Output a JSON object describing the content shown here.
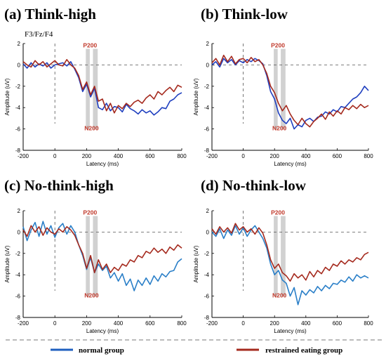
{
  "chart_data": [
    {
      "panel": "(a)",
      "title": "Think-high",
      "electrodes": "F3/Fz/F4",
      "type": "line",
      "xlabel": "Latency (ms)",
      "ylabel": "Amplitude (uV)",
      "xlim": [
        -200,
        800
      ],
      "ylim": [
        -8,
        2
      ],
      "xticks": [
        "-200",
        "0",
        "200",
        "400",
        "600",
        "800"
      ],
      "yticks": [
        "2",
        "0",
        "-2",
        "-4",
        "-6",
        "-8"
      ],
      "components": [
        {
          "label": "P200",
          "x": [
            195,
            220
          ]
        },
        {
          "label": "N200",
          "x": [
            240,
            270
          ]
        }
      ],
      "series": [
        {
          "name": "normal group",
          "color": "#1f3fbf",
          "x": [
            -200,
            -175,
            -150,
            -125,
            -100,
            -75,
            -50,
            -25,
            0,
            25,
            50,
            75,
            100,
            125,
            150,
            175,
            200,
            225,
            250,
            275,
            300,
            325,
            350,
            375,
            400,
            425,
            450,
            475,
            500,
            525,
            550,
            575,
            600,
            625,
            650,
            675,
            700,
            725,
            750,
            775,
            800
          ],
          "values": [
            0.1,
            -0.3,
            0.2,
            -0.2,
            0.1,
            -0.1,
            0.2,
            -0.3,
            0.0,
            0.1,
            0.2,
            -0.1,
            0.3,
            -0.4,
            -1.2,
            -2.5,
            -1.8,
            -3.0,
            -2.2,
            -4.0,
            -4.2,
            -3.6,
            -4.3,
            -3.9,
            -4.0,
            -4.4,
            -3.7,
            -4.1,
            -4.3,
            -4.6,
            -4.2,
            -4.5,
            -4.3,
            -4.7,
            -4.4,
            -4.0,
            -4.1,
            -3.4,
            -3.2,
            -2.8,
            -2.6
          ]
        },
        {
          "name": "restrained eating group",
          "color": "#a52a1e",
          "x": [
            -200,
            -175,
            -150,
            -125,
            -100,
            -75,
            -50,
            -25,
            0,
            25,
            50,
            75,
            100,
            125,
            150,
            175,
            200,
            225,
            250,
            275,
            300,
            325,
            350,
            375,
            400,
            425,
            450,
            475,
            500,
            525,
            550,
            575,
            600,
            625,
            650,
            675,
            700,
            725,
            750,
            775,
            800
          ],
          "values": [
            0.3,
            0.0,
            -0.2,
            0.4,
            0.0,
            0.3,
            -0.2,
            0.1,
            0.4,
            0.0,
            -0.1,
            0.5,
            0.0,
            -0.3,
            -1.0,
            -2.3,
            -1.6,
            -2.8,
            -2.0,
            -3.4,
            -3.2,
            -4.3,
            -3.6,
            -4.5,
            -3.8,
            -4.1,
            -3.6,
            -3.9,
            -3.5,
            -3.3,
            -3.6,
            -3.1,
            -2.8,
            -3.2,
            -2.5,
            -2.8,
            -2.4,
            -2.1,
            -2.5,
            -1.9,
            -2.1
          ]
        }
      ]
    },
    {
      "panel": "(b)",
      "title": "Think-low",
      "type": "line",
      "xlabel": "Latency (ms)",
      "ylabel": "Amplitude (uV)",
      "xlim": [
        -200,
        800
      ],
      "ylim": [
        -8,
        2
      ],
      "xticks": [
        "-200",
        "0",
        "200",
        "400",
        "600",
        "800"
      ],
      "yticks": [
        "2",
        "0",
        "-2",
        "-4",
        "-6",
        "-8"
      ],
      "components": [
        {
          "label": "P200",
          "x": [
            195,
            220
          ]
        },
        {
          "label": "N200",
          "x": [
            240,
            270
          ]
        }
      ],
      "series": [
        {
          "name": "normal group",
          "color": "#1f3fbf",
          "x": [
            -200,
            -175,
            -150,
            -125,
            -100,
            -75,
            -50,
            -25,
            0,
            25,
            50,
            75,
            100,
            125,
            150,
            175,
            200,
            225,
            250,
            275,
            300,
            325,
            350,
            375,
            400,
            425,
            450,
            475,
            500,
            525,
            550,
            575,
            600,
            625,
            650,
            675,
            700,
            725,
            750,
            775,
            800
          ],
          "values": [
            0.0,
            0.3,
            -0.2,
            0.6,
            0.2,
            0.5,
            0.0,
            0.4,
            0.2,
            0.5,
            0.3,
            0.6,
            0.4,
            0.1,
            -1.0,
            -2.5,
            -3.2,
            -4.5,
            -5.2,
            -5.5,
            -5.0,
            -6.0,
            -5.6,
            -5.8,
            -5.2,
            -5.0,
            -5.3,
            -4.9,
            -4.8,
            -4.4,
            -4.6,
            -4.2,
            -4.4,
            -3.9,
            -4.0,
            -3.6,
            -3.2,
            -3.0,
            -2.6,
            -2.0,
            -2.4
          ]
        },
        {
          "name": "restrained eating group",
          "color": "#a52a1e",
          "x": [
            -200,
            -175,
            -150,
            -125,
            -100,
            -75,
            -50,
            -25,
            0,
            25,
            50,
            75,
            100,
            125,
            150,
            175,
            200,
            225,
            250,
            275,
            300,
            325,
            350,
            375,
            400,
            425,
            450,
            475,
            500,
            525,
            550,
            575,
            600,
            625,
            650,
            675,
            700,
            725,
            750,
            775,
            800
          ],
          "values": [
            0.2,
            0.6,
            0.0,
            0.9,
            0.3,
            0.8,
            0.1,
            0.5,
            0.6,
            0.2,
            0.7,
            0.3,
            0.5,
            0.0,
            -0.8,
            -2.0,
            -2.6,
            -3.6,
            -4.3,
            -3.8,
            -4.6,
            -5.2,
            -5.6,
            -5.0,
            -5.5,
            -5.8,
            -5.3,
            -5.0,
            -4.6,
            -5.1,
            -4.4,
            -4.8,
            -4.3,
            -4.6,
            -4.0,
            -4.2,
            -3.8,
            -4.1,
            -3.7,
            -4.0,
            -3.8
          ]
        }
      ]
    },
    {
      "panel": "(c)",
      "title": "No-think-high",
      "type": "line",
      "xlabel": "Latency (ms)",
      "ylabel": "Amplitude (uV)",
      "xlim": [
        -200,
        800
      ],
      "ylim": [
        -8,
        2
      ],
      "xticks": [
        "-200",
        "0",
        "200",
        "400",
        "600",
        "800"
      ],
      "yticks": [
        "2",
        "0",
        "-2",
        "-4",
        "-6",
        "-8"
      ],
      "components": [
        {
          "label": "P200",
          "x": [
            195,
            220
          ]
        },
        {
          "label": "N200",
          "x": [
            240,
            270
          ]
        }
      ],
      "series": [
        {
          "name": "normal group",
          "color": "#2a7fc8",
          "x": [
            -200,
            -175,
            -150,
            -125,
            -100,
            -75,
            -50,
            -25,
            0,
            25,
            50,
            75,
            100,
            125,
            150,
            175,
            200,
            225,
            250,
            275,
            300,
            325,
            350,
            375,
            400,
            425,
            450,
            475,
            500,
            525,
            550,
            575,
            600,
            625,
            650,
            675,
            700,
            725,
            750,
            775,
            800
          ],
          "values": [
            0.5,
            -0.8,
            0.2,
            0.9,
            -0.4,
            1.0,
            -0.2,
            0.6,
            -0.5,
            0.4,
            0.8,
            -0.2,
            0.6,
            0.0,
            -1.2,
            -2.2,
            -3.5,
            -2.4,
            -3.8,
            -3.0,
            -3.6,
            -3.2,
            -4.3,
            -3.8,
            -4.6,
            -3.9,
            -5.0,
            -4.4,
            -5.5,
            -4.5,
            -5.0,
            -4.3,
            -4.9,
            -4.1,
            -4.6,
            -3.9,
            -4.2,
            -3.7,
            -3.6,
            -2.8,
            -2.5
          ]
        },
        {
          "name": "restrained eating group",
          "color": "#a52a1e",
          "x": [
            -200,
            -175,
            -150,
            -125,
            -100,
            -75,
            -50,
            -25,
            0,
            25,
            50,
            75,
            100,
            125,
            150,
            175,
            200,
            225,
            250,
            275,
            300,
            325,
            350,
            375,
            400,
            425,
            450,
            475,
            500,
            525,
            550,
            575,
            600,
            625,
            650,
            675,
            700,
            725,
            750,
            775,
            800
          ],
          "values": [
            0.2,
            -0.4,
            0.6,
            0.0,
            0.5,
            -0.3,
            0.4,
            0.0,
            -0.2,
            0.3,
            0.0,
            0.5,
            0.2,
            -0.3,
            -1.2,
            -2.0,
            -3.4,
            -2.2,
            -3.8,
            -2.6,
            -3.5,
            -3.0,
            -3.8,
            -3.3,
            -3.6,
            -3.0,
            -3.2,
            -2.6,
            -2.8,
            -2.2,
            -2.4,
            -1.8,
            -2.0,
            -1.5,
            -1.9,
            -1.6,
            -2.0,
            -1.4,
            -1.7,
            -1.2,
            -1.5
          ]
        }
      ]
    },
    {
      "panel": "(d)",
      "title": "No-think-low",
      "type": "line",
      "xlabel": "Latency (ms)",
      "ylabel": "Amplitude (uV)",
      "xlim": [
        -200,
        800
      ],
      "ylim": [
        -8,
        2
      ],
      "xticks": [
        "-200",
        "0",
        "200",
        "400",
        "600",
        "800"
      ],
      "yticks": [
        "2",
        "0",
        "-2",
        "-4",
        "-6",
        "-8"
      ],
      "components": [
        {
          "label": "P200",
          "x": [
            195,
            220
          ]
        },
        {
          "label": "N200",
          "x": [
            240,
            270
          ]
        }
      ],
      "series": [
        {
          "name": "normal group",
          "color": "#2a7fc8",
          "x": [
            -200,
            -175,
            -150,
            -125,
            -100,
            -75,
            -50,
            -25,
            0,
            25,
            50,
            75,
            100,
            125,
            150,
            175,
            200,
            225,
            250,
            275,
            300,
            325,
            350,
            375,
            400,
            425,
            450,
            475,
            500,
            525,
            550,
            575,
            600,
            625,
            650,
            675,
            700,
            725,
            750,
            775,
            800
          ],
          "values": [
            0.0,
            -0.4,
            0.3,
            -0.6,
            0.2,
            -0.3,
            0.6,
            -0.2,
            0.4,
            -0.4,
            0.2,
            0.6,
            0.0,
            -0.6,
            -1.5,
            -3.0,
            -4.0,
            -3.6,
            -4.5,
            -4.8,
            -6.0,
            -5.2,
            -6.8,
            -5.5,
            -5.9,
            -5.4,
            -5.7,
            -5.1,
            -5.5,
            -5.0,
            -5.3,
            -4.8,
            -4.9,
            -4.5,
            -4.7,
            -4.2,
            -4.6,
            -4.0,
            -4.3,
            -4.1,
            -4.3
          ]
        },
        {
          "name": "restrained eating group",
          "color": "#a52a1e",
          "x": [
            -200,
            -175,
            -150,
            -125,
            -100,
            -75,
            -50,
            -25,
            0,
            25,
            50,
            75,
            100,
            125,
            150,
            175,
            200,
            225,
            250,
            275,
            300,
            325,
            350,
            375,
            400,
            425,
            450,
            475,
            500,
            525,
            550,
            575,
            600,
            625,
            650,
            675,
            700,
            725,
            750,
            775,
            800
          ],
          "values": [
            0.3,
            -0.2,
            0.5,
            0.0,
            0.4,
            -0.1,
            0.8,
            0.2,
            0.5,
            0.0,
            0.3,
            -0.2,
            0.4,
            -0.1,
            -1.2,
            -2.6,
            -3.4,
            -3.0,
            -3.8,
            -4.1,
            -4.6,
            -3.9,
            -4.3,
            -4.0,
            -4.5,
            -3.7,
            -4.2,
            -3.6,
            -3.9,
            -3.3,
            -3.6,
            -3.0,
            -3.2,
            -2.7,
            -3.0,
            -2.6,
            -2.8,
            -2.4,
            -2.6,
            -2.1,
            -1.9
          ]
        }
      ]
    }
  ],
  "legend": [
    {
      "label": "normal group",
      "color": "#1f5fbf"
    },
    {
      "label": "restrained eating group",
      "color": "#a52a1e"
    }
  ]
}
